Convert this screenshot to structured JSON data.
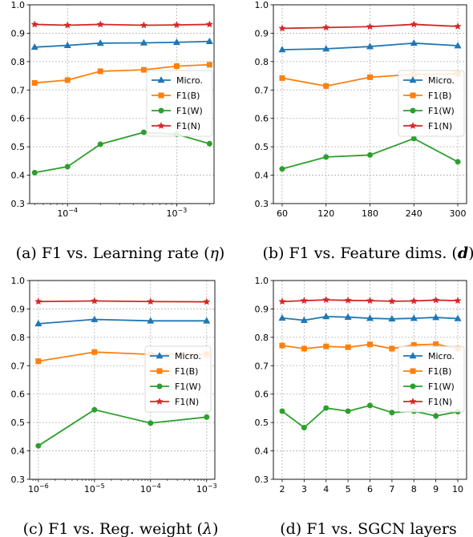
{
  "colors": {
    "Micro.": "#1f77b4",
    "F1(B)": "#ff7f0e",
    "F1(W)": "#2ca02c",
    "F1(N)": "#d62728"
  },
  "chart_data": [
    {
      "type": "line",
      "caption": "(a) F1 vs. Learning rate (η)",
      "caption_prefix": "(a) F1 vs. Learning rate (",
      "caption_symbol": "η",
      "caption_suffix": ")",
      "xscale": "log",
      "x": [
        5e-05,
        0.0001,
        0.0002,
        0.0005,
        0.001,
        0.002
      ],
      "xticks": [
        0.0001,
        0.001
      ],
      "xtick_labels": [
        {
          "base": "10",
          "exp": "−4"
        },
        {
          "base": "10",
          "exp": "−3"
        }
      ],
      "xlim": [
        4.5e-05,
        0.0022
      ],
      "ylim": [
        0.3,
        1.0
      ],
      "yticks": [
        0.3,
        0.4,
        0.5,
        0.6,
        0.7,
        0.8,
        0.9,
        1.0
      ],
      "ytick_labels": [
        "0.3",
        "0.4",
        "0.5",
        "0.6",
        "0.7",
        "0.8",
        "0.9",
        "1.0"
      ],
      "legend": "center-right",
      "series": [
        {
          "name": "Micro.",
          "marker": "triangle",
          "values": [
            0.851,
            0.857,
            0.865,
            0.866,
            0.868,
            0.871
          ]
        },
        {
          "name": "F1(B)",
          "marker": "square",
          "values": [
            0.725,
            0.735,
            0.766,
            0.771,
            0.784,
            0.789
          ]
        },
        {
          "name": "F1(W)",
          "marker": "circle",
          "values": [
            0.409,
            0.43,
            0.509,
            0.551,
            0.544,
            0.511
          ]
        },
        {
          "name": "F1(N)",
          "marker": "star",
          "values": [
            0.931,
            0.928,
            0.931,
            0.928,
            0.929,
            0.931
          ]
        }
      ]
    },
    {
      "type": "line",
      "caption": "(b) F1 vs. Feature dims. (d)",
      "caption_prefix": "(b) F1 vs. Feature dims. (",
      "caption_symbol": "d",
      "caption_suffix": ")",
      "xscale": "linear",
      "x": [
        60,
        120,
        180,
        240,
        300
      ],
      "xticks": [
        60,
        120,
        180,
        240,
        300
      ],
      "xtick_labels": [
        "60",
        "120",
        "180",
        "240",
        "300"
      ],
      "xlim": [
        48,
        312
      ],
      "ylim": [
        0.3,
        1.0
      ],
      "yticks": [
        0.3,
        0.4,
        0.5,
        0.6,
        0.7,
        0.8,
        0.9,
        1.0
      ],
      "ytick_labels": [
        "0.3",
        "0.4",
        "0.5",
        "0.6",
        "0.7",
        "0.8",
        "0.9",
        "1.0"
      ],
      "legend": "center-right",
      "series": [
        {
          "name": "Micro.",
          "marker": "triangle",
          "values": [
            0.842,
            0.845,
            0.853,
            0.865,
            0.856
          ]
        },
        {
          "name": "F1(B)",
          "marker": "square",
          "values": [
            0.742,
            0.714,
            0.745,
            0.755,
            0.757
          ]
        },
        {
          "name": "F1(W)",
          "marker": "circle",
          "values": [
            0.422,
            0.464,
            0.471,
            0.529,
            0.447
          ]
        },
        {
          "name": "F1(N)",
          "marker": "star",
          "values": [
            0.917,
            0.92,
            0.923,
            0.931,
            0.924
          ]
        }
      ]
    },
    {
      "type": "line",
      "caption": "(c) F1 vs. Reg. weight (λ)",
      "caption_prefix": "(c) F1 vs. Reg. weight (",
      "caption_symbol": "λ",
      "caption_suffix": ")",
      "xscale": "log",
      "x": [
        1e-06,
        1e-05,
        0.0001,
        0.001
      ],
      "xticks": [
        1e-06,
        1e-05,
        0.0001,
        0.001
      ],
      "xtick_labels": [
        {
          "base": "10",
          "exp": "−6"
        },
        {
          "base": "10",
          "exp": "−5"
        },
        {
          "base": "10",
          "exp": "−4"
        },
        {
          "base": "10",
          "exp": "−3"
        }
      ],
      "xlim": [
        7e-07,
        0.0014
      ],
      "ylim": [
        0.3,
        1.0
      ],
      "yticks": [
        0.3,
        0.4,
        0.5,
        0.6,
        0.7,
        0.8,
        0.9,
        1.0
      ],
      "ytick_labels": [
        "0.3",
        "0.4",
        "0.5",
        "0.6",
        "0.7",
        "0.8",
        "0.9",
        "1.0"
      ],
      "legend": "center-right",
      "series": [
        {
          "name": "Micro.",
          "marker": "triangle",
          "values": [
            0.848,
            0.863,
            0.858,
            0.858
          ]
        },
        {
          "name": "F1(B)",
          "marker": "square",
          "values": [
            0.716,
            0.748,
            0.74,
            0.74
          ]
        },
        {
          "name": "F1(W)",
          "marker": "circle",
          "values": [
            0.418,
            0.545,
            0.498,
            0.519
          ]
        },
        {
          "name": "F1(N)",
          "marker": "star",
          "values": [
            0.926,
            0.928,
            0.926,
            0.925
          ]
        }
      ]
    },
    {
      "type": "line",
      "caption": "(d) F1 vs. SGCN layers",
      "caption_prefix": "(d) F1 vs. SGCN layers",
      "caption_symbol": "",
      "caption_suffix": "",
      "xscale": "linear",
      "x": [
        2,
        3,
        4,
        5,
        6,
        7,
        8,
        9,
        10
      ],
      "xticks": [
        2,
        3,
        4,
        5,
        6,
        7,
        8,
        9,
        10
      ],
      "xtick_labels": [
        "2",
        "3",
        "4",
        "5",
        "6",
        "7",
        "8",
        "9",
        "10"
      ],
      "xlim": [
        1.6,
        10.4
      ],
      "ylim": [
        0.3,
        1.0
      ],
      "yticks": [
        0.3,
        0.4,
        0.5,
        0.6,
        0.7,
        0.8,
        0.9,
        1.0
      ],
      "ytick_labels": [
        "0.3",
        "0.4",
        "0.5",
        "0.6",
        "0.7",
        "0.8",
        "0.9",
        "1.0"
      ],
      "legend": "center-right",
      "series": [
        {
          "name": "Micro.",
          "marker": "triangle",
          "values": [
            0.868,
            0.86,
            0.873,
            0.871,
            0.867,
            0.865,
            0.867,
            0.87,
            0.866
          ]
        },
        {
          "name": "F1(B)",
          "marker": "square",
          "values": [
            0.771,
            0.76,
            0.768,
            0.765,
            0.775,
            0.76,
            0.773,
            0.776,
            0.76
          ]
        },
        {
          "name": "F1(W)",
          "marker": "circle",
          "values": [
            0.54,
            0.482,
            0.551,
            0.54,
            0.56,
            0.535,
            0.54,
            0.523,
            0.538
          ]
        },
        {
          "name": "F1(N)",
          "marker": "star",
          "values": [
            0.926,
            0.929,
            0.932,
            0.93,
            0.929,
            0.927,
            0.928,
            0.931,
            0.929
          ]
        }
      ]
    }
  ]
}
